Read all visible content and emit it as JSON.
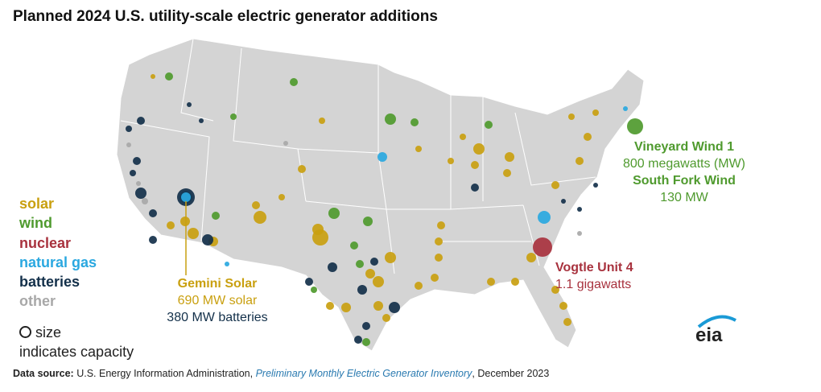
{
  "title": "Planned 2024 U.S. utility-scale electric generator additions",
  "legend": {
    "items": [
      {
        "label": "solar",
        "color": "#c9a010"
      },
      {
        "label": "wind",
        "color": "#4f9a2e"
      },
      {
        "label": "nuclear",
        "color": "#a8323e"
      },
      {
        "label": "natural gas",
        "color": "#2aa8e0"
      },
      {
        "label": "batteries",
        "color": "#13304a"
      },
      {
        "label": "other",
        "color": "#a8a8a8"
      }
    ],
    "size_note_line1": "size",
    "size_note_line2": "indicates capacity"
  },
  "annotations": {
    "vineyard_name": "Vineyard Wind 1",
    "vineyard_value": "800 megawatts (MW)",
    "southfork_name": "South Fork Wind",
    "southfork_value": "130 MW",
    "vogtle_name": "Vogtle Unit 4",
    "vogtle_value": "1.1 gigawatts",
    "gemini_name": "Gemini Solar",
    "gemini_solar": "690 MW solar",
    "gemini_batteries": "380 MW batteries"
  },
  "source": {
    "label": "Data source:",
    "text1": "U.S. Energy Information Administration,",
    "italic": "Preliminary Monthly Electric Generator Inventory",
    "text2": ", December 2023"
  },
  "logo": "eia"
}
